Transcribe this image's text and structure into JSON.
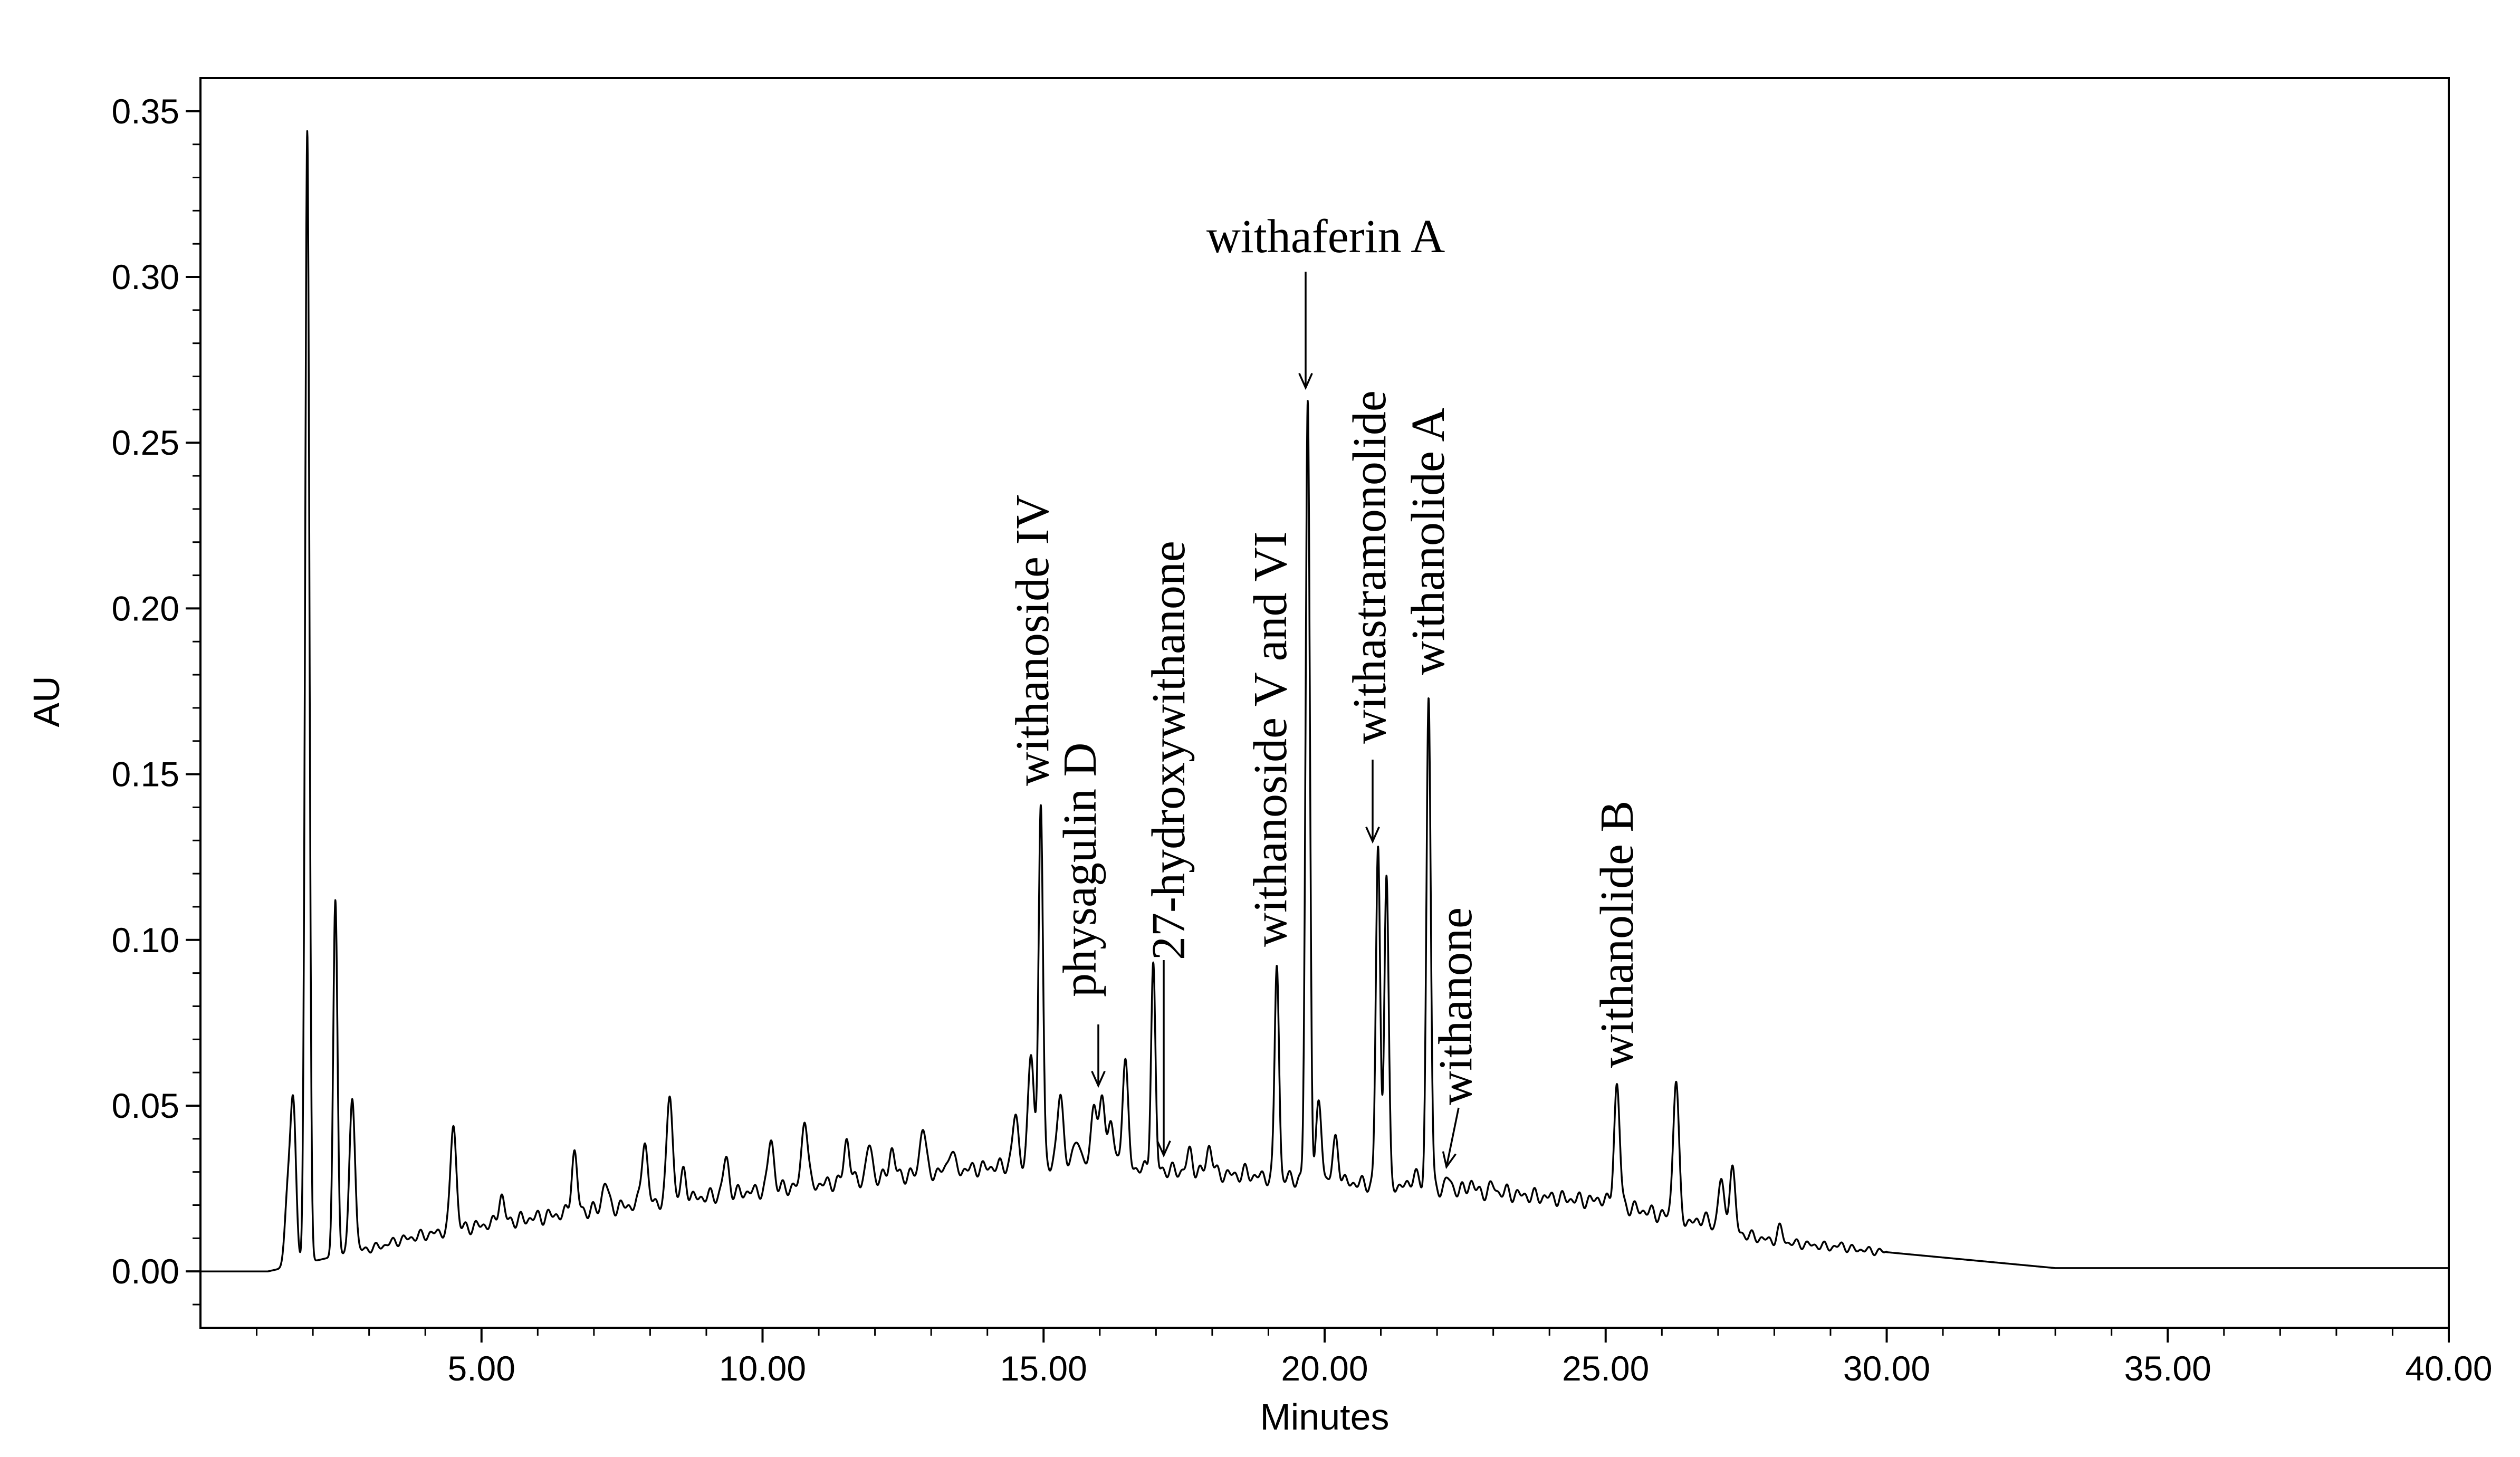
{
  "chart_data": {
    "type": "line",
    "title": "",
    "xlabel": "Minutes",
    "ylabel": "AU",
    "xlim": [
      0,
      40
    ],
    "ylim": [
      -0.017,
      0.36
    ],
    "x_ticks": [
      {
        "value": 5,
        "label": "5.00"
      },
      {
        "value": 10,
        "label": "10.00"
      },
      {
        "value": 15,
        "label": "15.00"
      },
      {
        "value": 20,
        "label": "20.00"
      },
      {
        "value": 25,
        "label": "25.00"
      },
      {
        "value": 30,
        "label": "30.00"
      },
      {
        "value": 35,
        "label": "35.00"
      },
      {
        "value": 40,
        "label": "40.00"
      }
    ],
    "y_ticks": [
      {
        "value": 0.0,
        "label": "0.00"
      },
      {
        "value": 0.05,
        "label": "0.05"
      },
      {
        "value": 0.1,
        "label": "0.10"
      },
      {
        "value": 0.15,
        "label": "0.15"
      },
      {
        "value": 0.2,
        "label": "0.20"
      },
      {
        "value": 0.25,
        "label": "0.25"
      },
      {
        "value": 0.3,
        "label": "0.30"
      },
      {
        "value": 0.35,
        "label": "0.35"
      }
    ],
    "grid": false,
    "series": [
      {
        "peaks": [
          [
            1.55,
            0.022
          ],
          [
            1.65,
            0.05
          ],
          [
            1.9,
            0.344
          ],
          [
            2.4,
            0.112
          ],
          [
            2.7,
            0.052
          ],
          [
            4.5,
            0.045
          ],
          [
            5.35,
            0.023
          ],
          [
            6.65,
            0.036
          ],
          [
            7.2,
            0.027
          ],
          [
            7.9,
            0.04
          ],
          [
            8.35,
            0.054
          ],
          [
            8.6,
            0.03
          ],
          [
            9.35,
            0.034
          ],
          [
            10.15,
            0.04
          ],
          [
            10.75,
            0.047
          ],
          [
            11.5,
            0.04
          ],
          [
            11.9,
            0.038
          ],
          [
            12.3,
            0.037
          ],
          [
            12.85,
            0.044
          ],
          [
            13.35,
            0.037
          ],
          [
            14.5,
            0.047
          ],
          [
            14.78,
            0.066
          ],
          [
            14.95,
            0.141
          ],
          [
            15.3,
            0.054
          ],
          [
            15.6,
            0.041
          ],
          [
            15.9,
            0.052
          ],
          [
            16.05,
            0.052
          ],
          [
            16.2,
            0.045
          ],
          [
            16.45,
            0.064
          ],
          [
            16.95,
            0.093
          ],
          [
            17.6,
            0.036
          ],
          [
            17.95,
            0.038
          ],
          [
            18.6,
            0.03
          ],
          [
            19.15,
            0.093
          ],
          [
            19.7,
            0.262
          ],
          [
            19.9,
            0.05
          ],
          [
            20.2,
            0.04
          ],
          [
            20.95,
            0.128
          ],
          [
            21.1,
            0.12
          ],
          [
            21.6,
            0.03
          ],
          [
            21.85,
            0.174
          ],
          [
            22.2,
            0.028
          ],
          [
            22.6,
            0.027
          ],
          [
            23.0,
            0.026
          ],
          [
            23.25,
            0.024
          ],
          [
            23.95,
            0.019
          ],
          [
            24.9,
            0.022
          ],
          [
            25.2,
            0.056
          ],
          [
            25.75,
            0.018
          ],
          [
            26.25,
            0.058
          ],
          [
            26.75,
            0.017
          ],
          [
            27.05,
            0.028
          ],
          [
            27.25,
            0.032
          ],
          [
            28.1,
            0.013
          ],
          [
            29.2,
            0.008
          ]
        ]
      }
    ],
    "annotations": [
      {
        "text": "withaferin A",
        "x": 19.7,
        "y": 0.262,
        "style": "arrow"
      },
      {
        "text": "withanoside IV",
        "x": 14.95,
        "y": 0.141,
        "style": "vertical"
      },
      {
        "text": "physagulin D",
        "x": 15.95,
        "y": 0.052,
        "style": "vertical-arrow"
      },
      {
        "text": "27-hydroxywithanone",
        "x": 17.15,
        "y": 0.036,
        "style": "vertical-arrow"
      },
      {
        "text": "withanoside V and VI",
        "x": 19.15,
        "y": 0.093,
        "style": "vertical"
      },
      {
        "text": "withastramonolide",
        "x": 20.95,
        "y": 0.128,
        "style": "vertical-arrow"
      },
      {
        "text": "withanolide A",
        "x": 21.85,
        "y": 0.174,
        "style": "vertical"
      },
      {
        "text": "withanone",
        "x": 22.2,
        "y": 0.028,
        "style": "vertical-arrow"
      },
      {
        "text": "withanolide B",
        "x": 25.2,
        "y": 0.056,
        "style": "vertical"
      }
    ]
  }
}
